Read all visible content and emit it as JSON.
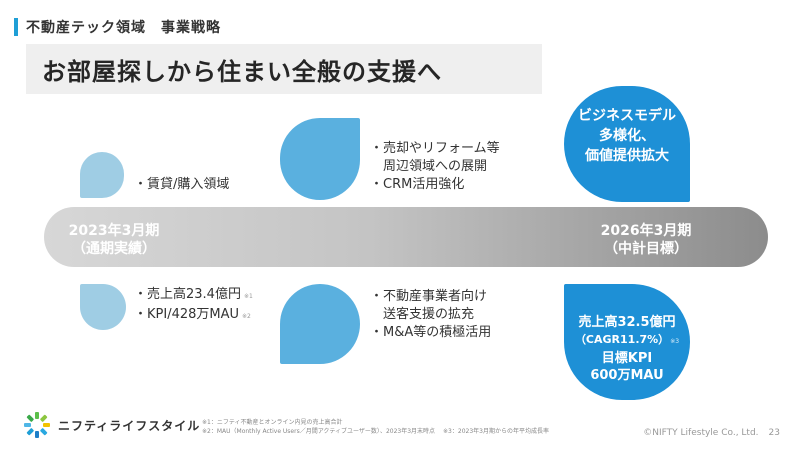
{
  "header": {
    "section_label": "不動産テック領域　事業戦略",
    "title": "お部屋探しから住まい全般の支援へ"
  },
  "timeline": {
    "start_line1": "2023年3月期",
    "start_line2": "（通期実績）",
    "end_line1": "2026年3月期",
    "end_line2": "（中計目標）"
  },
  "upper": {
    "current": [
      "・賃貸/購入領域"
    ],
    "strategy": [
      "・売却やリフォーム等",
      "　周辺領域への展開",
      "・CRM活用強化"
    ],
    "goal": [
      "ビジネスモデル",
      "多様化、",
      "価値提供拡大"
    ]
  },
  "lower": {
    "current_1": "・売上高23.4億円",
    "current_1_note": "※1",
    "current_2": "・KPI/428万MAU",
    "current_2_note": "※2",
    "strategy": [
      "・不動産事業者向け",
      "　送客支援の拡充",
      "・M&A等の積極活用"
    ],
    "goal_1": "売上高32.5億円",
    "goal_2": "（CAGR11.7%）",
    "goal_2_note": "※3",
    "goal_3": "目標KPI",
    "goal_4": "600万MAU"
  },
  "footer": {
    "company": "ニフティライフスタイル",
    "note1": "※1：ニフティ不動産とオンライン内見の売上高合計",
    "note2": "※2：MAU（Monthly Active Users／月間アクティブユーザー数）、2023年3月末時点",
    "note3": "※3：2023年3月期からの年平均成長率",
    "copyright": "©NIFTY Lifestyle Co., Ltd.",
    "page": "23"
  },
  "colors": {
    "accent": "#1f9fd6",
    "drop_light": "#9fcde4",
    "drop_mid": "#5ab0df",
    "drop_dark": "#1e90d6"
  }
}
